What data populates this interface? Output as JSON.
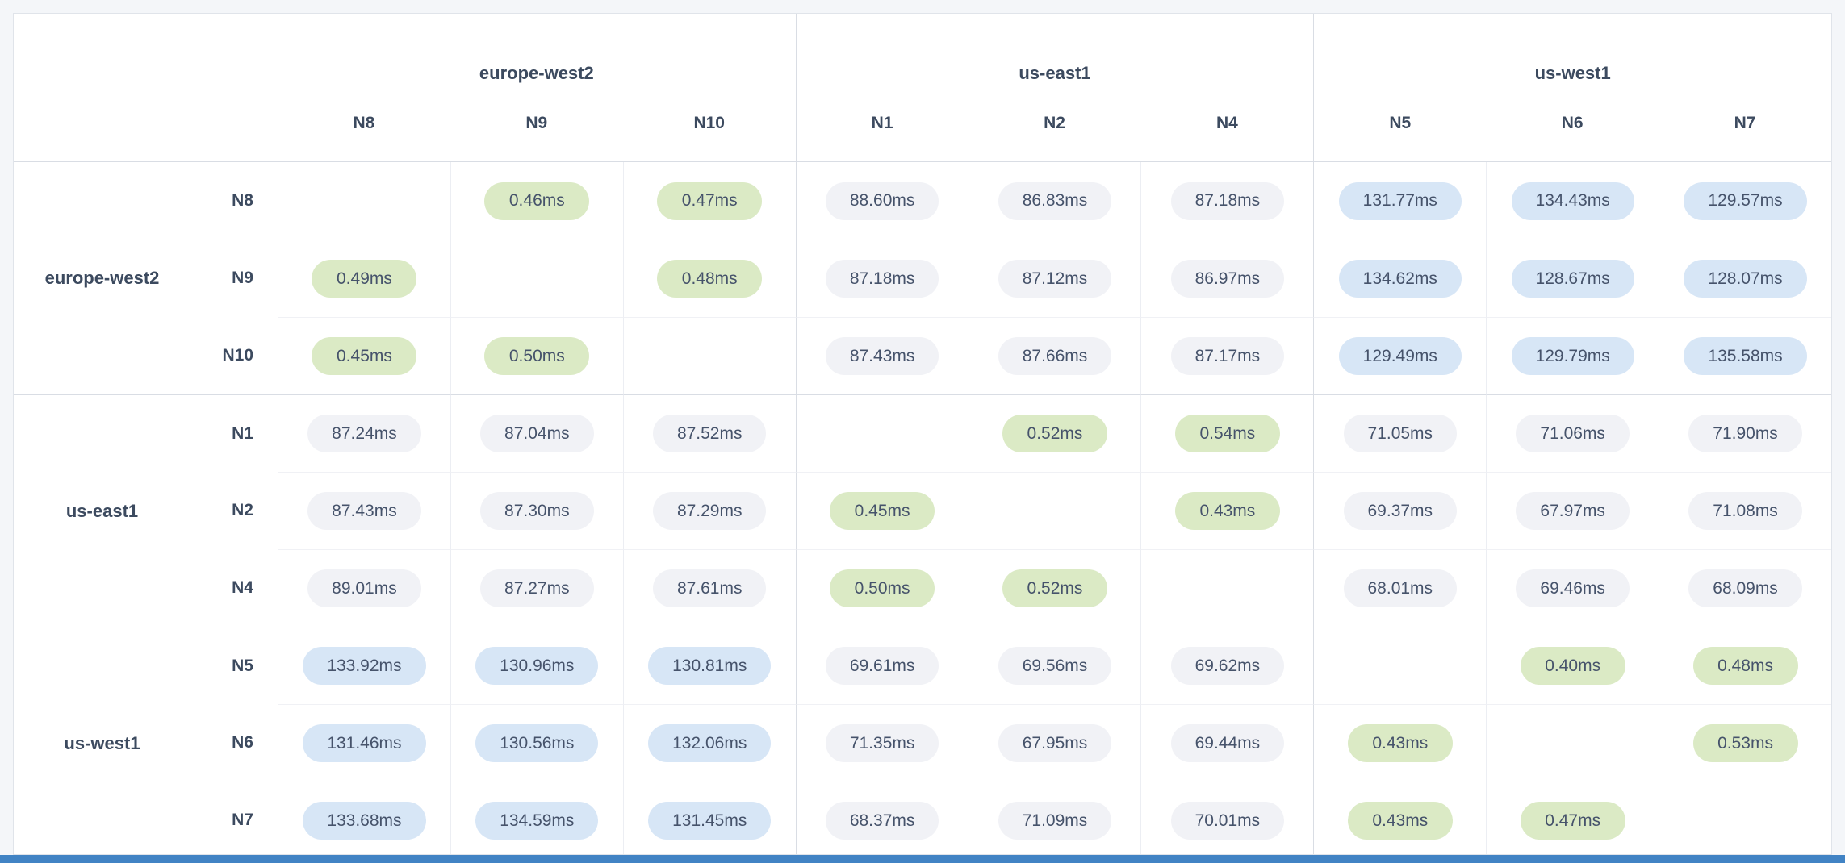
{
  "colors": {
    "page_bg": "#f4f6f9",
    "card_bg": "#ffffff",
    "card_border": "#e0e4ea",
    "border_strong": "#d9dde4",
    "border_light": "#eceef3",
    "row_border": "#f0f1f5",
    "header_text": "#3c4a5f",
    "pill_text": "#46536b",
    "pill_low_bg": "#dbeac5",
    "pill_mid_bg": "#f1f2f6",
    "pill_high_bg": "#d7e6f6",
    "bottom_bar": "#4183c4"
  },
  "chart_data": {
    "type": "heatmap",
    "unit": "ms",
    "columns": [
      "N8",
      "N9",
      "N10",
      "N1",
      "N2",
      "N4",
      "N5",
      "N6",
      "N7"
    ],
    "column_groups": [
      {
        "label": "europe-west2",
        "nodes": [
          "N8",
          "N9",
          "N10"
        ]
      },
      {
        "label": "us-east1",
        "nodes": [
          "N1",
          "N2",
          "N4"
        ]
      },
      {
        "label": "us-west1",
        "nodes": [
          "N5",
          "N6",
          "N7"
        ]
      }
    ],
    "row_groups": [
      {
        "label": "europe-west2",
        "nodes": [
          "N8",
          "N9",
          "N10"
        ]
      },
      {
        "label": "us-east1",
        "nodes": [
          "N1",
          "N2",
          "N4"
        ]
      },
      {
        "label": "us-west1",
        "nodes": [
          "N5",
          "N6",
          "N7"
        ]
      }
    ],
    "rows": [
      {
        "node": "N8",
        "region": "europe-west2",
        "values": [
          null,
          "0.46ms",
          "0.47ms",
          "88.60ms",
          "86.83ms",
          "87.18ms",
          "131.77ms",
          "134.43ms",
          "129.57ms"
        ]
      },
      {
        "node": "N9",
        "region": "europe-west2",
        "values": [
          "0.49ms",
          null,
          "0.48ms",
          "87.18ms",
          "87.12ms",
          "86.97ms",
          "134.62ms",
          "128.67ms",
          "128.07ms"
        ]
      },
      {
        "node": "N10",
        "region": "europe-west2",
        "values": [
          "0.45ms",
          "0.50ms",
          null,
          "87.43ms",
          "87.66ms",
          "87.17ms",
          "129.49ms",
          "129.79ms",
          "135.58ms"
        ]
      },
      {
        "node": "N1",
        "region": "us-east1",
        "values": [
          "87.24ms",
          "87.04ms",
          "87.52ms",
          null,
          "0.52ms",
          "0.54ms",
          "71.05ms",
          "71.06ms",
          "71.90ms"
        ]
      },
      {
        "node": "N2",
        "region": "us-east1",
        "values": [
          "87.43ms",
          "87.30ms",
          "87.29ms",
          "0.45ms",
          null,
          "0.43ms",
          "69.37ms",
          "67.97ms",
          "71.08ms"
        ]
      },
      {
        "node": "N4",
        "region": "us-east1",
        "values": [
          "89.01ms",
          "87.27ms",
          "87.61ms",
          "0.50ms",
          "0.52ms",
          null,
          "68.01ms",
          "69.46ms",
          "68.09ms"
        ]
      },
      {
        "node": "N5",
        "region": "us-west1",
        "values": [
          "133.92ms",
          "130.96ms",
          "130.81ms",
          "69.61ms",
          "69.56ms",
          "69.62ms",
          null,
          "0.40ms",
          "0.48ms"
        ]
      },
      {
        "node": "N6",
        "region": "us-west1",
        "values": [
          "131.46ms",
          "130.56ms",
          "132.06ms",
          "71.35ms",
          "67.95ms",
          "69.44ms",
          "0.43ms",
          null,
          "0.53ms"
        ]
      },
      {
        "node": "N7",
        "region": "us-west1",
        "values": [
          "133.68ms",
          "134.59ms",
          "131.45ms",
          "68.37ms",
          "71.09ms",
          "70.01ms",
          "0.43ms",
          "0.47ms",
          null
        ]
      }
    ],
    "cell_color_tiers": {
      "low_bg_when_under_ms": 1,
      "mid_bg_when_under_ms": 100,
      "high_bg_when_at_least_ms": 100
    },
    "empty_diagonal": true
  }
}
